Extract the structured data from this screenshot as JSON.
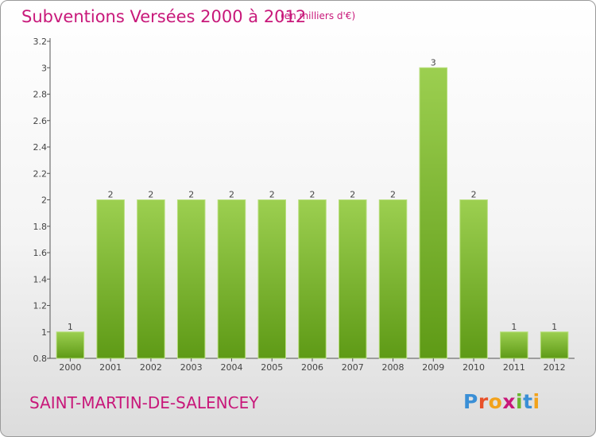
{
  "header": {
    "title": "Subventions Versées 2000 à 2012",
    "subtitle": "(en milliers d'€)"
  },
  "footer": {
    "commune": "SAINT-MARTIN-DE-SALENCEY",
    "brand": "Proxiti",
    "brand_letters": [
      {
        "ch": "P",
        "color": "#3a8fd6"
      },
      {
        "ch": "r",
        "color": "#e8512a"
      },
      {
        "ch": "o",
        "color": "#f2a21b"
      },
      {
        "ch": "x",
        "color": "#c8187a"
      },
      {
        "ch": "i",
        "color": "#6ab52e"
      },
      {
        "ch": "t",
        "color": "#3a8fd6"
      },
      {
        "ch": "i",
        "color": "#f2a21b"
      }
    ]
  },
  "colors": {
    "accent": "#c8187a",
    "bar_top": "#9ccf50",
    "bar_bottom": "#5e9a16",
    "axis": "#555555",
    "label": "#444444"
  },
  "chart_data": {
    "type": "bar",
    "title": "Subventions Versées 2000 à 2012",
    "subtitle": "(en milliers d'€)",
    "categories": [
      "2000",
      "2001",
      "2002",
      "2003",
      "2004",
      "2005",
      "2006",
      "2007",
      "2008",
      "2009",
      "2010",
      "2011",
      "2012"
    ],
    "values": [
      1,
      2,
      2,
      2,
      2,
      2,
      2,
      2,
      2,
      3,
      2,
      1,
      1
    ],
    "data_labels": [
      "1",
      "2",
      "2",
      "2",
      "2",
      "2",
      "2",
      "2",
      "2",
      "3",
      "2",
      "1",
      "1"
    ],
    "ylim": [
      0.8,
      3.2
    ],
    "yticks": [
      "0.8",
      "1",
      "1.2",
      "1.4",
      "1.6",
      "1.8",
      "2",
      "2.2",
      "2.4",
      "2.6",
      "2.8",
      "3",
      "3.2"
    ],
    "xlabel": "",
    "ylabel": "",
    "grid": false
  }
}
